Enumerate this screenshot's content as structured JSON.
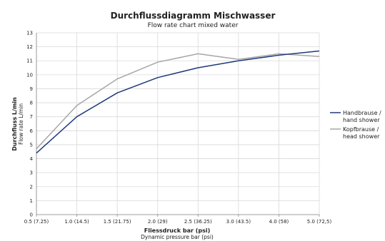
{
  "chart_data": {
    "type": "line",
    "title": "Durchflussdiagramm Mischwasser",
    "subtitle": "Flow rate chart mixed water",
    "xlabel": "Fliessdruck bar (psi)",
    "xlabel_sub": "Dynamic pressure bar (psi)",
    "ylabel": "Durchfluss L/min",
    "ylabel_sub": "Flow rate L/min",
    "categories": [
      "0.5 (7.25)",
      "1.0 (14.5)",
      "1.5 (21.75)",
      "2.0 (29)",
      "2.5 (36.25)",
      "3.0 (43.5)",
      "4.0 (58)",
      "5.0 (72,5)"
    ],
    "ylim": [
      0,
      13
    ],
    "yticks": [
      0,
      1,
      2,
      3,
      4,
      5,
      6,
      7,
      8,
      9,
      10,
      11,
      12,
      13
    ],
    "grid": true,
    "legend_position": "right",
    "series": [
      {
        "name": "Handbrause /",
        "name_line2": "hand shower",
        "color": "#1f3a7a",
        "values": [
          4.4,
          7.0,
          8.7,
          9.8,
          10.5,
          11.0,
          11.4,
          11.7
        ]
      },
      {
        "name": "Kopfbrause /",
        "name_line2": "head shower",
        "color": "#a6a6a6",
        "values": [
          4.7,
          7.8,
          9.7,
          10.9,
          11.5,
          11.1,
          11.5,
          11.3
        ]
      }
    ]
  }
}
